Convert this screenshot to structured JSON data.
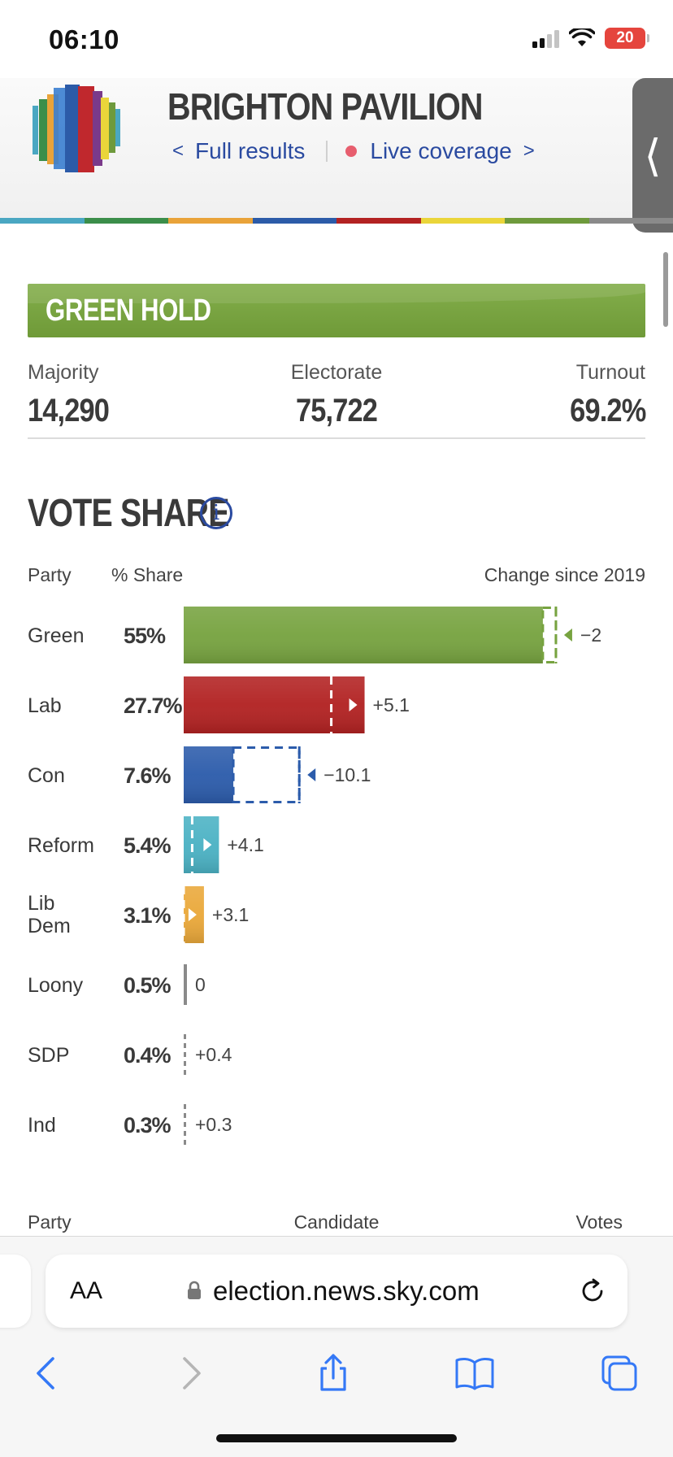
{
  "status_bar": {
    "time": "06:10",
    "battery": "20"
  },
  "header": {
    "title": "BRIGHTON PAVILION",
    "full_results": "Full results",
    "live_coverage": "Live coverage",
    "side_tab_glyph": "⟨"
  },
  "colors": {
    "green": "#77a340",
    "lab": "#b22222",
    "con": "#2c5cab",
    "reform": "#4bb2c4",
    "libdem": "#eaa83a",
    "other": "#8a8a8a",
    "accent": "#2a4aa0",
    "strip": [
      "#4aa7c2",
      "#3b8e4a",
      "#e9a339",
      "#2c5ba8",
      "#b32222",
      "#ead53a",
      "#6e9a3c",
      "#8a8a8a"
    ]
  },
  "result": {
    "banner": "GREEN HOLD"
  },
  "stats": {
    "majority_label": "Majority",
    "majority_value": "14,290",
    "electorate_label": "Electorate",
    "electorate_value": "75,722",
    "turnout_label": "Turnout",
    "turnout_value": "69.2%"
  },
  "vote_share": {
    "title": "VOTE SHARE",
    "info_glyph": "i",
    "col_party": "Party",
    "col_share": "% Share",
    "col_change": "Change since 2019"
  },
  "chart_data": {
    "type": "bar",
    "orientation": "horizontal",
    "categories": [
      "Green",
      "Lab",
      "Con",
      "Reform",
      "Lib Dem",
      "Loony",
      "SDP",
      "Ind"
    ],
    "share_labels": [
      "55%",
      "27.7%",
      "7.6%",
      "5.4%",
      "3.1%",
      "0.5%",
      "0.4%",
      "0.3%"
    ],
    "values": [
      55,
      27.7,
      7.6,
      5.4,
      3.1,
      0.5,
      0.4,
      0.3
    ],
    "change": [
      -2,
      5.1,
      -10.1,
      4.1,
      3.1,
      0,
      0.4,
      0.3
    ],
    "change_labels": [
      "−2",
      "+5.1",
      "−10.1",
      "+4.1",
      "+3.1",
      "0",
      "+0.4",
      "+0.3"
    ],
    "xlim": [
      0,
      60
    ]
  },
  "table": {
    "col_party": "Party",
    "col_candidate": "Candidate",
    "col_votes": "Votes"
  },
  "browser": {
    "aa_label": "AA",
    "url": "election.news.sky.com"
  }
}
